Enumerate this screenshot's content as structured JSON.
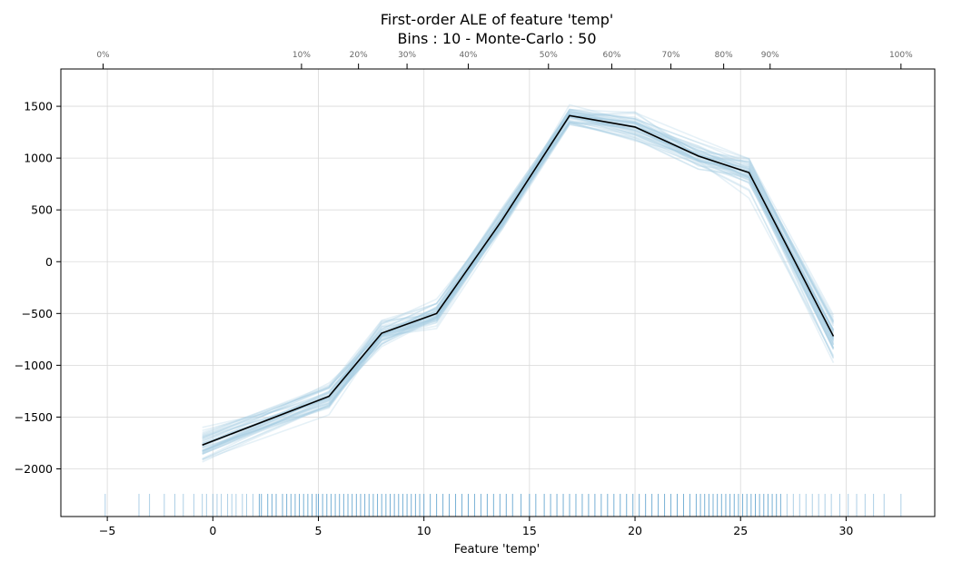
{
  "chart_data": {
    "type": "line",
    "title": "First-order ALE of feature 'temp'",
    "subtitle": "Bins : 10 - Monte-Carlo : 50",
    "xlabel": "Feature 'temp'",
    "ylabel": "",
    "xlim": [
      -7.2,
      34.2
    ],
    "ylim": [
      -2460,
      1860
    ],
    "x_ticks": [
      -5,
      0,
      5,
      10,
      15,
      20,
      25,
      30
    ],
    "y_ticks": [
      -2000,
      -1500,
      -1000,
      -500,
      0,
      500,
      1000,
      1500
    ],
    "y_tick_labels": [
      "−2000",
      "−1500",
      "−1000",
      "−500",
      "0",
      "500",
      "1000",
      "1500"
    ],
    "x_tick_labels": [
      "−5",
      "0",
      "5",
      "10",
      "15",
      "20",
      "25",
      "30"
    ],
    "grid": true,
    "quantiles": [
      {
        "label": "0%",
        "x": -5.2
      },
      {
        "label": "10%",
        "x": 4.2
      },
      {
        "label": "20%",
        "x": 6.9
      },
      {
        "label": "30%",
        "x": 9.2
      },
      {
        "label": "40%",
        "x": 12.1
      },
      {
        "label": "50%",
        "x": 15.9
      },
      {
        "label": "60%",
        "x": 18.9
      },
      {
        "label": "70%",
        "x": 21.7
      },
      {
        "label": "80%",
        "x": 24.2
      },
      {
        "label": "90%",
        "x": 26.4
      },
      {
        "label": "100%",
        "x": 32.6
      }
    ],
    "series": [
      {
        "x": [
          -0.5,
          5.5,
          8.0,
          10.6,
          13.7,
          16.9,
          20.0,
          23.0,
          25.4,
          29.4
        ],
        "values": [
          -1770,
          -1300,
          -690,
          -500,
          400,
          1410,
          1300,
          1020,
          860,
          -720
        ],
        "color": "#000000"
      }
    ],
    "monte_carlo": {
      "runs": 50,
      "color": "#a6cbe3",
      "spread_start": 150,
      "spread_peak": 90,
      "spread_end": 170
    },
    "rug": {
      "color": "#4a95c7",
      "values": [
        -5.1,
        -3.5,
        -3.0,
        -2.3,
        -1.8,
        -1.4,
        -0.9,
        -0.5,
        -0.3,
        0.0,
        0.2,
        0.4,
        0.7,
        0.9,
        1.1,
        1.4,
        1.6,
        1.9,
        2.2,
        2.3,
        2.6,
        2.8,
        3.0,
        3.3,
        3.5,
        3.7,
        3.9,
        4.1,
        4.3,
        4.5,
        4.7,
        4.9,
        5.0,
        5.2,
        5.4,
        5.6,
        5.8,
        6.0,
        6.2,
        6.4,
        6.6,
        6.8,
        7.0,
        7.2,
        7.4,
        7.6,
        7.8,
        8.0,
        8.2,
        8.4,
        8.6,
        8.8,
        9.0,
        9.2,
        9.4,
        9.6,
        9.8,
        10.0,
        10.3,
        10.6,
        10.9,
        11.2,
        11.5,
        11.8,
        12.1,
        12.4,
        12.7,
        13.0,
        13.3,
        13.6,
        13.9,
        14.2,
        14.6,
        15.0,
        15.3,
        15.7,
        16.0,
        16.3,
        16.6,
        16.9,
        17.2,
        17.5,
        17.8,
        18.1,
        18.4,
        18.7,
        19.0,
        19.3,
        19.6,
        19.9,
        20.2,
        20.5,
        20.8,
        21.1,
        21.4,
        21.7,
        22.0,
        22.3,
        22.6,
        22.9,
        23.1,
        23.3,
        23.5,
        23.7,
        23.9,
        24.1,
        24.3,
        24.5,
        24.7,
        24.9,
        25.1,
        25.3,
        25.5,
        25.7,
        25.9,
        26.1,
        26.3,
        26.5,
        26.7,
        26.9,
        27.2,
        27.5,
        27.8,
        28.1,
        28.4,
        28.7,
        29.0,
        29.3,
        29.7,
        30.1,
        30.5,
        30.9,
        31.3,
        31.8,
        32.6
      ]
    }
  }
}
